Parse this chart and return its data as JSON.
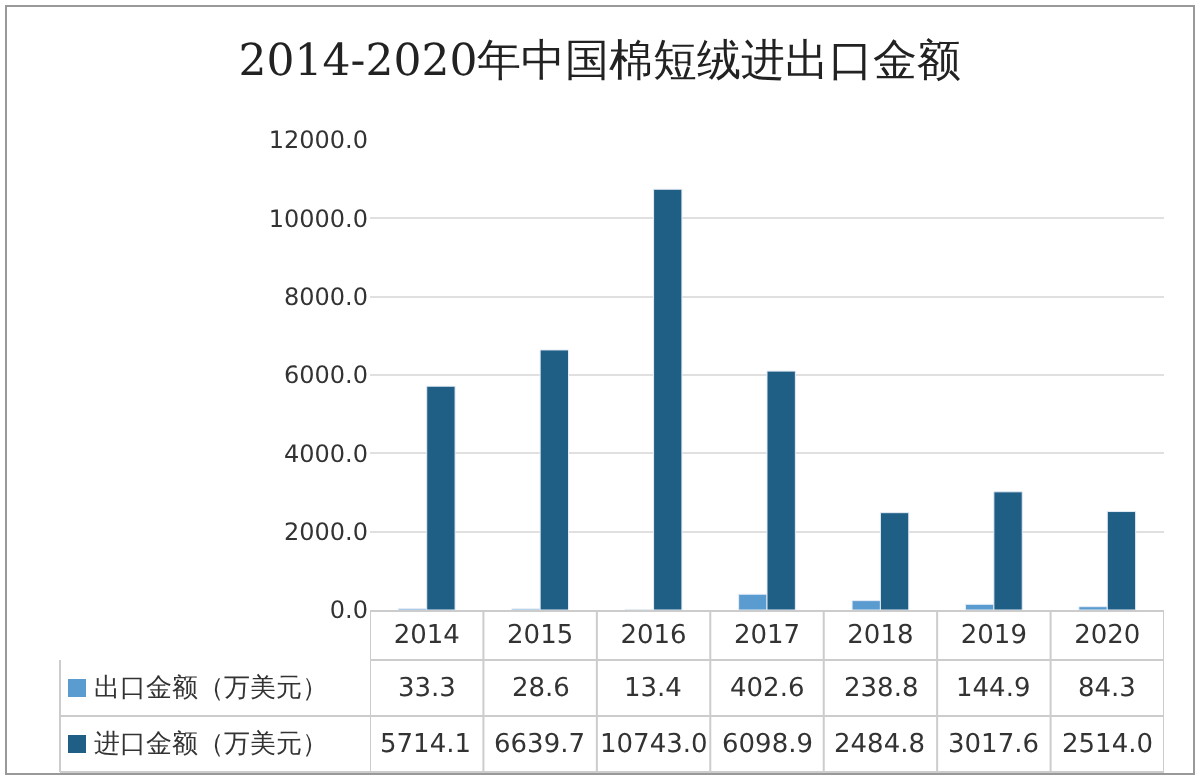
{
  "chart_data": {
    "type": "bar",
    "title": "2014-2020年中国棉短绒进出口金额",
    "categories": [
      "2014",
      "2015",
      "2016",
      "2017",
      "2018",
      "2019",
      "2020"
    ],
    "series": [
      {
        "name": "出口金额（万美元）",
        "color": "#5a9bd0",
        "values": [
          33.3,
          28.6,
          13.4,
          402.6,
          238.8,
          144.9,
          84.3
        ],
        "value_labels": [
          "33.3",
          "28.6",
          "13.4",
          "402.6",
          "238.8",
          "144.9",
          "84.3"
        ]
      },
      {
        "name": "进口金额（万美元）",
        "color": "#1f5f86",
        "values": [
          5714.1,
          6639.7,
          10743.0,
          6098.9,
          2484.8,
          3017.6,
          2514.0
        ],
        "value_labels": [
          "5714.1",
          "6639.7",
          "10743.0",
          "6098.9",
          "2484.8",
          "3017.6",
          "2514.0"
        ]
      }
    ],
    "ylim": [
      0,
      12000
    ],
    "yticks": [
      {
        "value": 0,
        "label": "0.0"
      },
      {
        "value": 2000,
        "label": "2000.0"
      },
      {
        "value": 4000,
        "label": "4000.0"
      },
      {
        "value": 6000,
        "label": "6000.0"
      },
      {
        "value": 8000,
        "label": "8000.0"
      },
      {
        "value": 10000,
        "label": "10000.0"
      },
      {
        "value": 12000,
        "label": "12000.0"
      }
    ],
    "grid": "y",
    "legend": "bottom"
  }
}
